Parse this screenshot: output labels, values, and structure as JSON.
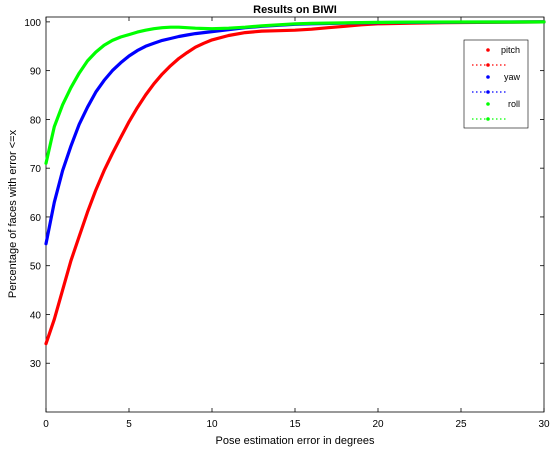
{
  "chart_data": {
    "type": "line",
    "title": "Results on BIWI",
    "xlabel": "Pose estimation error in degrees",
    "ylabel": "Percentage of faces with error <=x",
    "xlim": [
      0,
      30
    ],
    "ylim": [
      20,
      101
    ],
    "xticks": [
      0,
      5,
      10,
      15,
      20,
      25,
      30
    ],
    "yticks": [
      30,
      40,
      50,
      60,
      70,
      80,
      90,
      100
    ],
    "grid": false,
    "legend_position": "top-right",
    "series": [
      {
        "name": "pitch",
        "color": "#ff0000",
        "x": [
          0,
          0.5,
          1,
          1.5,
          2,
          2.5,
          3,
          3.5,
          4,
          4.5,
          5,
          5.5,
          6,
          6.5,
          7,
          7.5,
          8,
          8.5,
          9,
          9.5,
          10,
          11,
          12,
          13,
          14,
          15,
          16,
          17,
          18,
          19,
          20,
          22,
          24,
          26,
          28,
          30
        ],
        "y": [
          34,
          39,
          45,
          51,
          56,
          61,
          65.5,
          69.5,
          73,
          76.3,
          79.5,
          82.4,
          85,
          87.3,
          89.3,
          91,
          92.5,
          93.7,
          94.8,
          95.6,
          96.3,
          97.2,
          97.8,
          98.1,
          98.2,
          98.3,
          98.5,
          98.8,
          99.1,
          99.4,
          99.6,
          99.75,
          99.85,
          99.9,
          99.95,
          100
        ]
      },
      {
        "name": "yaw",
        "color": "#0000ff",
        "x": [
          0,
          0.5,
          1,
          1.5,
          2,
          2.5,
          3,
          3.5,
          4,
          4.5,
          5,
          5.5,
          6,
          6.5,
          7,
          7.5,
          8,
          8.5,
          9,
          9.5,
          10,
          11,
          12,
          13,
          14,
          15,
          16,
          18,
          20,
          22,
          25,
          28,
          30
        ],
        "y": [
          54.5,
          63,
          69.5,
          74.5,
          79,
          82.5,
          85.6,
          88,
          90,
          91.6,
          93,
          94.1,
          95,
          95.6,
          96.2,
          96.6,
          97,
          97.3,
          97.6,
          97.8,
          98,
          98.4,
          98.8,
          99.1,
          99.3,
          99.5,
          99.6,
          99.75,
          99.85,
          99.9,
          99.95,
          99.97,
          100
        ]
      },
      {
        "name": "roll",
        "color": "#00ff00",
        "x": [
          0,
          0.5,
          1,
          1.5,
          2,
          2.5,
          3,
          3.5,
          4,
          4.5,
          5,
          5.5,
          6,
          6.5,
          7,
          7.5,
          8,
          8.5,
          9,
          9.5,
          10,
          11,
          12,
          13,
          14,
          15,
          16,
          18,
          20,
          22,
          25,
          28,
          30
        ],
        "y": [
          71,
          78.5,
          83,
          86.5,
          89.5,
          92,
          93.8,
          95.2,
          96.2,
          96.9,
          97.4,
          97.9,
          98.3,
          98.6,
          98.8,
          98.9,
          98.9,
          98.8,
          98.7,
          98.65,
          98.6,
          98.7,
          98.9,
          99.2,
          99.4,
          99.6,
          99.7,
          99.8,
          99.9,
          99.95,
          99.97,
          99.98,
          100
        ]
      }
    ]
  }
}
